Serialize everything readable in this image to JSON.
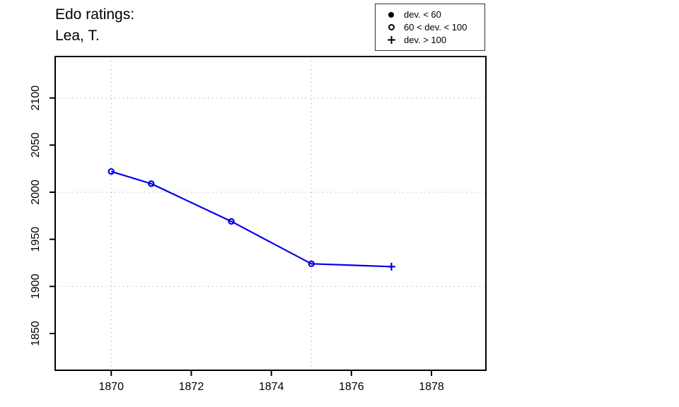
{
  "title": {
    "line1": "Edo ratings:",
    "line2": "Lea, T."
  },
  "legend": {
    "items": [
      {
        "icon": "filled-circle-icon",
        "label": "dev. < 60"
      },
      {
        "icon": "open-circle-icon",
        "label": "60 < dev. < 100"
      },
      {
        "icon": "plus-icon",
        "label": "dev. > 100"
      }
    ]
  },
  "colors": {
    "series": "#0000EE",
    "grid": "#999999",
    "axis": "#000000",
    "text": "#000000",
    "background": "#ffffff"
  },
  "chart_data": {
    "type": "line",
    "title": "Edo ratings: Lea, T.",
    "xlabel": "",
    "ylabel": "",
    "series": [
      {
        "name": "Lea, T.",
        "color": "#0000EE",
        "points": [
          {
            "x": 1870,
            "y": 2022,
            "marker": "open-circle"
          },
          {
            "x": 1871,
            "y": 2009,
            "marker": "open-circle"
          },
          {
            "x": 1873,
            "y": 1969,
            "marker": "open-circle"
          },
          {
            "x": 1875,
            "y": 1924,
            "marker": "open-circle"
          },
          {
            "x": 1877,
            "y": 1921,
            "marker": "plus"
          }
        ]
      }
    ],
    "x_ticks": [
      1870,
      1872,
      1874,
      1876,
      1878
    ],
    "y_ticks": [
      1850,
      1900,
      1950,
      2000,
      2050,
      2100
    ],
    "x_gridlines": [
      1870,
      1875
    ],
    "y_gridlines": [
      1900,
      2000,
      2100
    ],
    "xlim": [
      1868.6,
      1879.36
    ],
    "ylim": [
      1811,
      2144
    ],
    "grid": "dotted",
    "legend_position": "top-right",
    "marker_legend": [
      {
        "marker": "filled-circle",
        "label": "dev. < 60"
      },
      {
        "marker": "open-circle",
        "label": "60 < dev. < 100"
      },
      {
        "marker": "plus",
        "label": "dev. > 100"
      }
    ]
  }
}
